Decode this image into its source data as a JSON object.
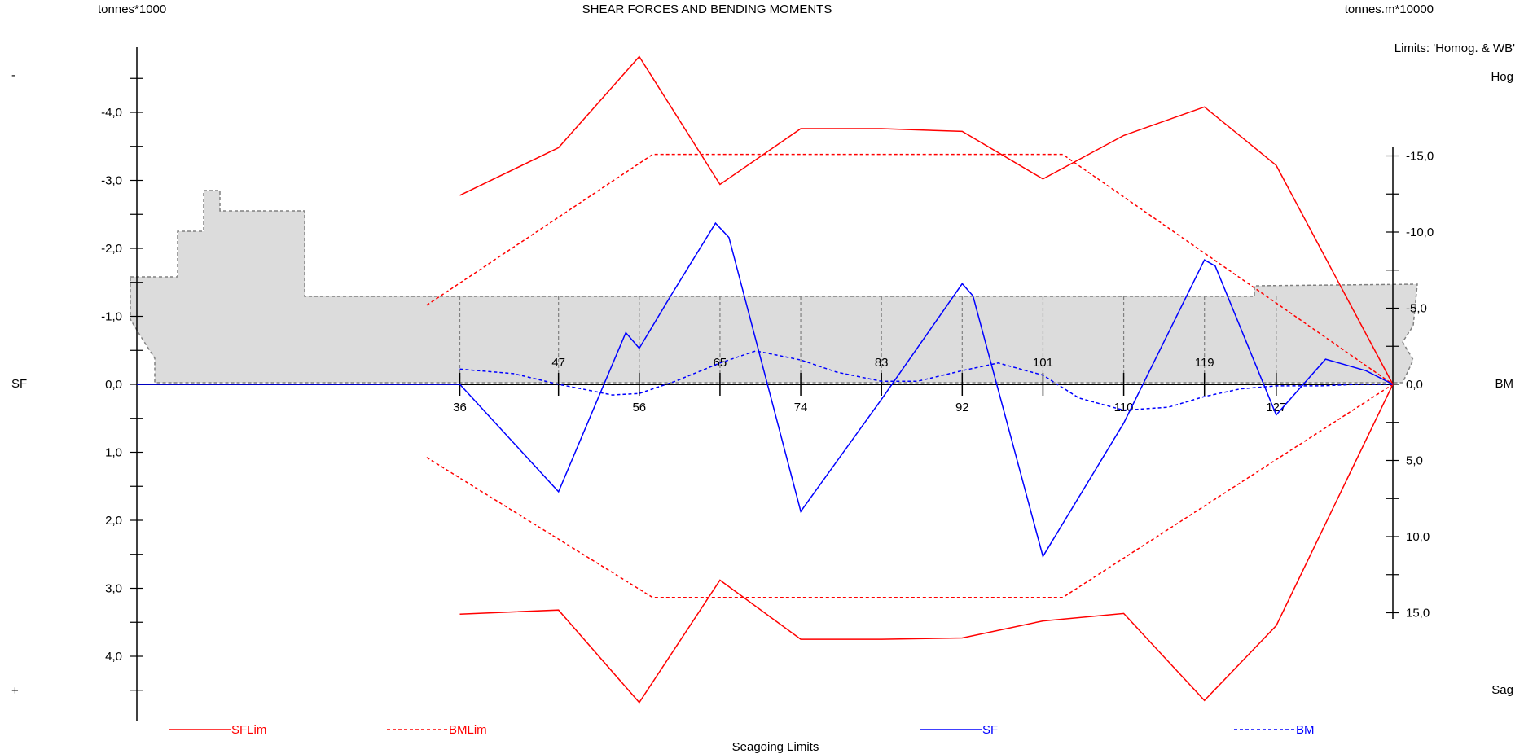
{
  "chart_data": {
    "type": "line",
    "title": "SHEAR FORCES AND BENDING MOMENTS",
    "left_unit": "tonnes*1000",
    "right_unit": "tonnes.m*10000",
    "limits_label": "Limits: 'Homog. & WB'",
    "left_axis_label": "SF",
    "right_axis_label": "BM",
    "hog_label": "Hog",
    "sag_label": "Sag",
    "minus_sign": "-",
    "plus_sign": "+",
    "footer": "Seagoing Limits",
    "x_range": [
      0,
      140
    ],
    "left_ylim": [
      -4.8,
      4.8
    ],
    "right_ylim": [
      -20.7,
      20.7
    ],
    "left_ticks": [
      {
        "v": -4,
        "label": "-4,0"
      },
      {
        "v": -3,
        "label": "-3,0"
      },
      {
        "v": -2,
        "label": "-2,0"
      },
      {
        "v": -1,
        "label": "-1,0"
      },
      {
        "v": 0,
        "label": "0,0"
      },
      {
        "v": 1,
        "label": "1,0"
      },
      {
        "v": 2,
        "label": "2,0"
      },
      {
        "v": 3,
        "label": "3,0"
      },
      {
        "v": 4,
        "label": "4,0"
      }
    ],
    "right_ticks": [
      {
        "v": -15,
        "label": "-15,0"
      },
      {
        "v": -10,
        "label": "-10,0"
      },
      {
        "v": -5,
        "label": "-5,0"
      },
      {
        "v": 0,
        "label": "0,0"
      },
      {
        "v": 5,
        "label": "5,0"
      },
      {
        "v": 10,
        "label": "10,0"
      },
      {
        "v": 15,
        "label": "15,0"
      }
    ],
    "frames": [
      {
        "x": 36,
        "label": "36",
        "pos": "below"
      },
      {
        "x": 47,
        "label": "47",
        "pos": "above"
      },
      {
        "x": 56,
        "label": "56",
        "pos": "below"
      },
      {
        "x": 65,
        "label": "65",
        "pos": "above"
      },
      {
        "x": 74,
        "label": "74",
        "pos": "below"
      },
      {
        "x": 83,
        "label": "83",
        "pos": "above"
      },
      {
        "x": 92,
        "label": "92",
        "pos": "below"
      },
      {
        "x": 101,
        "label": "101",
        "pos": "above"
      },
      {
        "x": 110,
        "label": "110",
        "pos": "below"
      },
      {
        "x": 119,
        "label": "119",
        "pos": "above"
      },
      {
        "x": 127,
        "label": "127",
        "pos": "below"
      }
    ],
    "series": [
      {
        "name": "SFLim",
        "axis": "left",
        "color": "#ff0000",
        "dash": "solid",
        "segments": [
          [
            [
              36,
              -2.78
            ],
            [
              47,
              -3.48
            ],
            [
              56,
              -4.82
            ],
            [
              65,
              -2.94
            ],
            [
              74,
              -3.76
            ],
            [
              83,
              -3.76
            ],
            [
              92,
              -3.72
            ],
            [
              101,
              -3.02
            ],
            [
              110,
              -3.66
            ],
            [
              119,
              -4.08
            ],
            [
              127,
              -3.22
            ],
            [
              140,
              0
            ]
          ],
          [
            [
              36,
              3.38
            ],
            [
              47,
              3.32
            ],
            [
              56,
              4.68
            ],
            [
              65,
              2.88
            ],
            [
              74,
              3.75
            ],
            [
              83,
              3.75
            ],
            [
              92,
              3.73
            ],
            [
              101,
              3.48
            ],
            [
              110,
              3.37
            ],
            [
              119,
              4.65
            ],
            [
              127,
              3.55
            ],
            [
              140,
              0
            ]
          ]
        ]
      },
      {
        "name": "BMLim",
        "axis": "right",
        "color": "#ff0000",
        "dash": "dashed",
        "segments": [
          [
            [
              32.3,
              -5.2
            ],
            [
              57.5,
              -15.1
            ],
            [
              95,
              -15.1
            ],
            [
              103.2,
              -15.1
            ],
            [
              140,
              0
            ]
          ],
          [
            [
              32.3,
              4.8
            ],
            [
              57.5,
              14.0
            ],
            [
              95,
              14.0
            ],
            [
              103.2,
              14.0
            ],
            [
              140,
              0
            ]
          ]
        ]
      },
      {
        "name": "SF",
        "axis": "left",
        "color": "#0000ff",
        "dash": "solid",
        "segments": [
          [
            [
              0,
              0
            ],
            [
              36,
              0
            ],
            [
              47,
              1.58
            ],
            [
              54.5,
              -0.76
            ],
            [
              56,
              -0.53
            ],
            [
              59.5,
              -1.3
            ],
            [
              64.5,
              -2.37
            ],
            [
              66,
              -2.16
            ],
            [
              74,
              1.87
            ],
            [
              83,
              0.22
            ],
            [
              92,
              -1.48
            ],
            [
              93.2,
              -1.3
            ],
            [
              101,
              2.53
            ],
            [
              110,
              0.57
            ],
            [
              119,
              -1.83
            ],
            [
              120.2,
              -1.74
            ],
            [
              127,
              0.45
            ],
            [
              132.5,
              -0.37
            ],
            [
              137,
              -0.2
            ],
            [
              140,
              0
            ]
          ]
        ]
      },
      {
        "name": "BM",
        "axis": "right",
        "color": "#0000ff",
        "dash": "dashed",
        "segments": [
          [
            [
              36,
              -1.0
            ],
            [
              42,
              -0.7
            ],
            [
              47,
              0.0
            ],
            [
              53,
              0.7
            ],
            [
              56,
              0.6
            ],
            [
              60,
              -0.2
            ],
            [
              65,
              -1.4
            ],
            [
              69,
              -2.2
            ],
            [
              74,
              -1.6
            ],
            [
              78,
              -0.8
            ],
            [
              83,
              -0.2
            ],
            [
              87,
              -0.2
            ],
            [
              92,
              -0.9
            ],
            [
              96,
              -1.4
            ],
            [
              101,
              -0.6
            ],
            [
              105,
              0.9
            ],
            [
              110,
              1.7
            ],
            [
              115,
              1.5
            ],
            [
              119,
              0.8
            ],
            [
              123,
              0.3
            ],
            [
              127,
              0.1
            ],
            [
              132,
              0.1
            ],
            [
              136,
              0.0
            ],
            [
              140,
              0
            ]
          ]
        ]
      }
    ],
    "legend": [
      {
        "name": "SFLim",
        "color": "#ff0000",
        "dash": "solid"
      },
      {
        "name": "BMLim",
        "color": "#ff0000",
        "dash": "dashed"
      },
      {
        "name": "SF",
        "color": "#0000ff",
        "dash": "solid"
      },
      {
        "name": "BM",
        "color": "#0000ff",
        "dash": "dashed"
      }
    ]
  }
}
